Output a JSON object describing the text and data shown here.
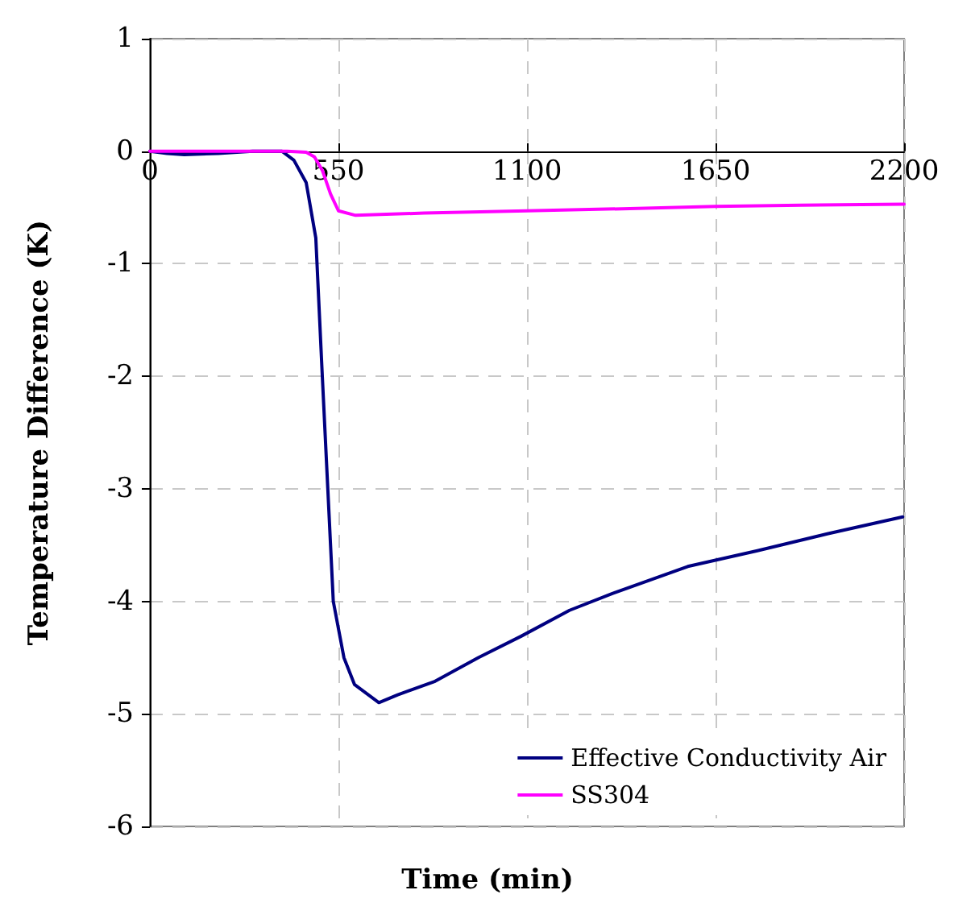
{
  "chart_data": {
    "type": "line",
    "xlabel": "Time (min)",
    "ylabel": "Temperature Difference (K)",
    "xlim": [
      0,
      2200
    ],
    "xticks": [
      0,
      550,
      1100,
      1650,
      2200
    ],
    "ylim": [
      -6,
      1
    ],
    "yticks": [
      -6,
      -5,
      -4,
      -3,
      -2,
      -1,
      0,
      1
    ],
    "grid": true,
    "legend": "bottom right",
    "marker": "none",
    "line_style": "solid",
    "series": [
      {
        "name": "Effective Conductivity Air",
        "color": "#000080",
        "x": [
          0,
          50,
          100,
          200,
          300,
          385,
          420,
          456,
          484,
          503,
          519,
          535,
          566,
          597,
          668,
          723,
          832,
          958,
          1083,
          1224,
          1349,
          1569,
          1772,
          1976,
          2196
        ],
        "values": [
          0,
          -0.02,
          -0.03,
          -0.02,
          0,
          0,
          -0.08,
          -0.28,
          -0.77,
          -2,
          -3,
          -4,
          -4.5,
          -4.74,
          -4.9,
          -4.83,
          -4.71,
          -4.5,
          -4.31,
          -4.08,
          -3.93,
          -3.69,
          -3.55,
          -3.4,
          -3.25
        ]
      },
      {
        "name": "SS304",
        "color": "#ff00ff",
        "x": [
          0,
          200,
          400,
          456,
          480,
          503,
          527,
          550,
          600,
          800,
          1100,
          1400,
          1650,
          1900,
          2200
        ],
        "values": [
          0,
          0,
          0,
          -0.01,
          -0.05,
          -0.17,
          -0.38,
          -0.53,
          -0.57,
          -0.55,
          -0.53,
          -0.51,
          -0.49,
          -0.48,
          -0.47
        ]
      }
    ]
  }
}
